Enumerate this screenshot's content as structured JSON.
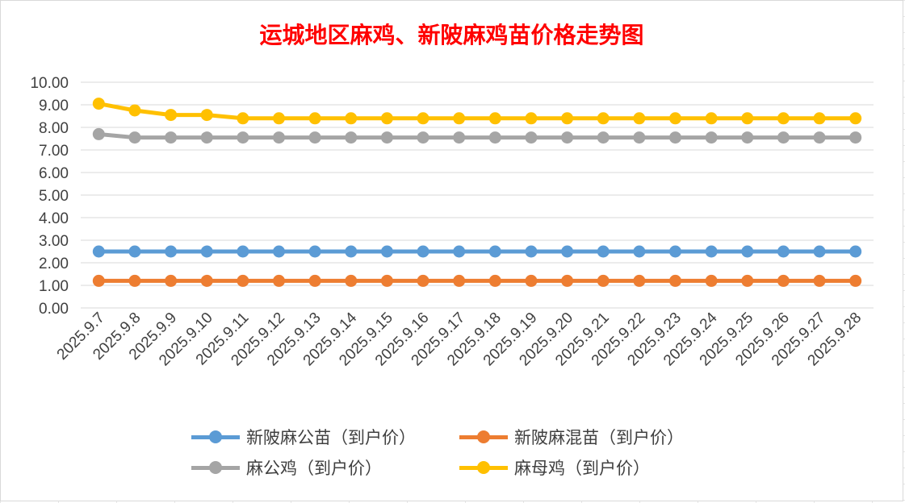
{
  "chart_data": {
    "type": "line",
    "title": "运城地区麻鸡、新陂麻鸡苗价格走势图",
    "xlabel": "",
    "ylabel": "",
    "categories": [
      "2025.9.7",
      "2025.9.8",
      "2025.9.9",
      "2025.9.10",
      "2025.9.11",
      "2025.9.12",
      "2025.9.13",
      "2025.9.14",
      "2025.9.15",
      "2025.9.16",
      "2025.9.17",
      "2025.9.18",
      "2025.9.19",
      "2025.9.20",
      "2025.9.21",
      "2025.9.22",
      "2025.9.23",
      "2025.9.24",
      "2025.9.25",
      "2025.9.26",
      "2025.9.27",
      "2025.9.28"
    ],
    "ylim": [
      0,
      10
    ],
    "ytick_labels": [
      "0.00",
      "1.00",
      "2.00",
      "3.00",
      "4.00",
      "5.00",
      "6.00",
      "7.00",
      "8.00",
      "9.00",
      "10.00"
    ],
    "grid": true,
    "legend_position": "bottom",
    "series": [
      {
        "name": "新陂麻公苗（到户价）",
        "color": "#5b9bd5",
        "values": [
          2.5,
          2.5,
          2.5,
          2.5,
          2.5,
          2.5,
          2.5,
          2.5,
          2.5,
          2.5,
          2.5,
          2.5,
          2.5,
          2.5,
          2.5,
          2.5,
          2.5,
          2.5,
          2.5,
          2.5,
          2.5,
          2.5
        ]
      },
      {
        "name": "新陂麻混苗（到户价）",
        "color": "#ed7d31",
        "values": [
          1.2,
          1.2,
          1.2,
          1.2,
          1.2,
          1.2,
          1.2,
          1.2,
          1.2,
          1.2,
          1.2,
          1.2,
          1.2,
          1.2,
          1.2,
          1.2,
          1.2,
          1.2,
          1.2,
          1.2,
          1.2,
          1.2
        ]
      },
      {
        "name": "麻公鸡（到户价）",
        "color": "#a5a5a5",
        "values": [
          7.7,
          7.55,
          7.55,
          7.55,
          7.55,
          7.55,
          7.55,
          7.55,
          7.55,
          7.55,
          7.55,
          7.55,
          7.55,
          7.55,
          7.55,
          7.55,
          7.55,
          7.55,
          7.55,
          7.55,
          7.55,
          7.55
        ]
      },
      {
        "name": "麻母鸡（到户价）",
        "color": "#ffc000",
        "values": [
          9.05,
          8.75,
          8.55,
          8.55,
          8.4,
          8.4,
          8.4,
          8.4,
          8.4,
          8.4,
          8.4,
          8.4,
          8.4,
          8.4,
          8.4,
          8.4,
          8.4,
          8.4,
          8.4,
          8.4,
          8.4,
          8.4
        ]
      }
    ]
  }
}
